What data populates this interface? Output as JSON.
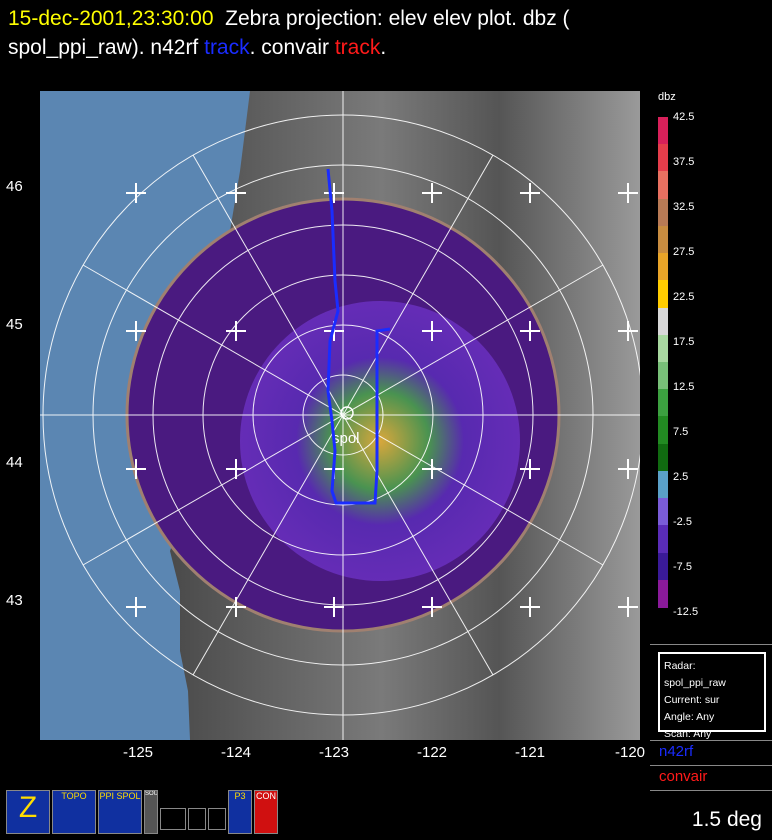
{
  "title": {
    "date": "15-dec-2001,23:30:00",
    "line1_rest": "Zebra projection: elev elev  plot.  dbz (",
    "line2_a": "spol_ppi_raw).   n42rf ",
    "track_n42rf": "track",
    "line2_b": ".   convair ",
    "track_convair": "track",
    "line2_end": "."
  },
  "axes": {
    "y_labels": [
      "46",
      "45",
      "44",
      "43"
    ],
    "x_labels": [
      "-125",
      "-124",
      "-123",
      "-122",
      "-121",
      "-120"
    ]
  },
  "radar_label": "spol",
  "colorbar": {
    "title": "dbz",
    "labels": [
      "42.5",
      "37.5",
      "32.5",
      "27.5",
      "22.5",
      "17.5",
      "12.5",
      "7.5",
      "2.5",
      "-2.5",
      "-7.5",
      "-12.5"
    ],
    "colors": [
      "#d8205a",
      "#e53d4b",
      "#e87060",
      "#b87a55",
      "#c88c40",
      "#e8a428",
      "#ffcc00",
      "#d8d8d8",
      "#a8d8a0",
      "#78c078",
      "#3ca040",
      "#228a22",
      "#106a10",
      "#5aa0c8",
      "#7a5cd8",
      "#5a2cb8",
      "#3a1a98",
      "#8a1a9a"
    ]
  },
  "info": {
    "radar": "Radar: spol_ppi_raw",
    "current": "Current: sur",
    "angle": "Angle: Any",
    "scan": "Scan: Any"
  },
  "platforms": {
    "n42rf": "n42rf",
    "convair": "convair",
    "n42rf_color": "#1a2cff",
    "convair_color": "#ff1a1a"
  },
  "elevation": "1.5 deg",
  "icons": [
    {
      "name": "zebra-z-icon",
      "text": "Z"
    },
    {
      "name": "topo-icon",
      "text": "TOPO"
    },
    {
      "name": "ppi-spol-icon",
      "text": "PPI SPOL"
    },
    {
      "name": "soundings-icon",
      "text": "SOUNDS"
    },
    {
      "name": "rings-icon",
      "text": ""
    },
    {
      "name": "range-ring-icon",
      "text": ""
    },
    {
      "name": "grid-icon",
      "text": ""
    },
    {
      "name": "p3-aircraft-icon",
      "text": "P3"
    },
    {
      "name": "convair-aircraft-icon",
      "text": "CON"
    }
  ]
}
